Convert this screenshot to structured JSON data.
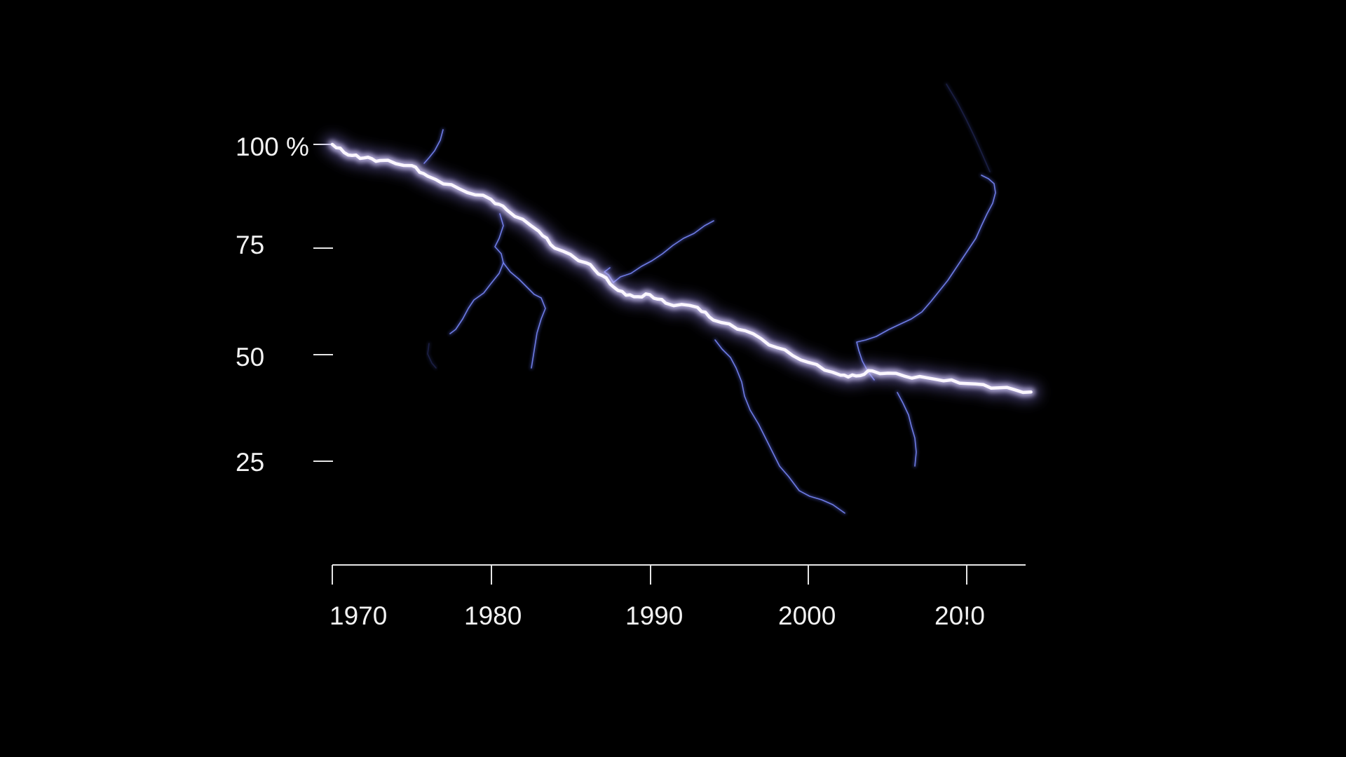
{
  "colors": {
    "background": "#000000",
    "text": "#f2f2f2",
    "axis": "#e6e6e6",
    "line_glow": "#8a7fe0",
    "line_core": "#fbf7ff",
    "lightning_branch": "#5b6cf0"
  },
  "chart_data": {
    "type": "line",
    "title": "",
    "xlabel": "",
    "ylabel": "",
    "xlim": [
      1970,
      2014
    ],
    "ylim": [
      0,
      100
    ],
    "grid": false,
    "line_style": "glowing lightning bolt with forked branches",
    "x_ticks": [
      1970,
      1980,
      1990,
      2000,
      2010
    ],
    "x_tick_labels": [
      "1970",
      "1980",
      "1990",
      "2000",
      "20!0"
    ],
    "y_ticks": [
      100,
      75,
      50,
      25
    ],
    "y_tick_labels": [
      "100 %",
      "75",
      "50",
      "25"
    ],
    "series": [
      {
        "x": [
          1970,
          1971,
          1972,
          1973,
          1975,
          1976,
          1978,
          1980,
          1981,
          1983,
          1984,
          1986,
          1987,
          1988,
          1989,
          1990,
          1991,
          1993,
          1994,
          1996,
          1998,
          2000,
          2002,
          2003,
          2004,
          2006,
          2008,
          2010,
          2012,
          2014
        ],
        "values": [
          100,
          97.5,
          96.8,
          96.2,
          95.0,
          92.5,
          89.5,
          87.0,
          84.5,
          79.5,
          75.5,
          72.0,
          69.0,
          65.5,
          64.0,
          64.5,
          62.5,
          61.5,
          58.5,
          56.0,
          52.0,
          48.5,
          45.5,
          45.3,
          46.5,
          45.3,
          44.5,
          43.5,
          42.5,
          41.5
        ]
      }
    ]
  }
}
